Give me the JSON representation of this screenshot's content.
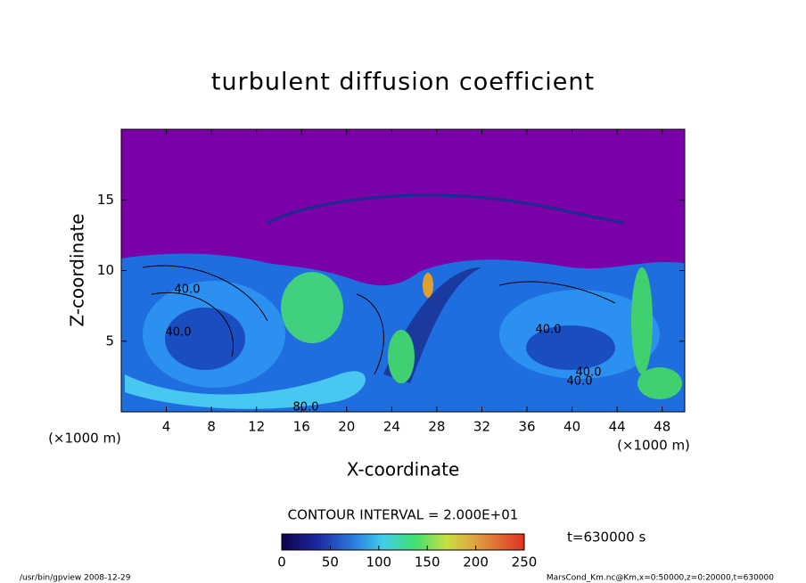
{
  "chart_data": {
    "type": "contour",
    "title": "turbulent diffusion coefficient",
    "xlabel": "X-coordinate",
    "ylabel": "Z-coordinate",
    "x_unit_labels": [
      "(×1000 m)",
      "(×1000 m)"
    ],
    "xlim": [
      0,
      50
    ],
    "xticks": [
      4,
      8,
      12,
      16,
      20,
      24,
      28,
      32,
      36,
      40,
      44,
      48
    ],
    "ylim": [
      0,
      20
    ],
    "yticks": [
      5,
      10,
      15
    ],
    "contour_labels": [
      "40.0",
      "40.0",
      "40.0",
      "40.0",
      "40.0",
      "80.0"
    ],
    "contour_interval": "CONTOUR INTERVAL = 2.000E+01",
    "colorbar": {
      "lim": [
        0,
        250
      ],
      "ticks": [
        0,
        50,
        100,
        150,
        200,
        250
      ]
    },
    "time_label": "t=630000 s",
    "footer_left": "/usr/bin/gpview   2008-12-29",
    "footer_right": "MarsCond_Km.nc@Km,x=0:50000,z=0:20000,t=630000"
  }
}
